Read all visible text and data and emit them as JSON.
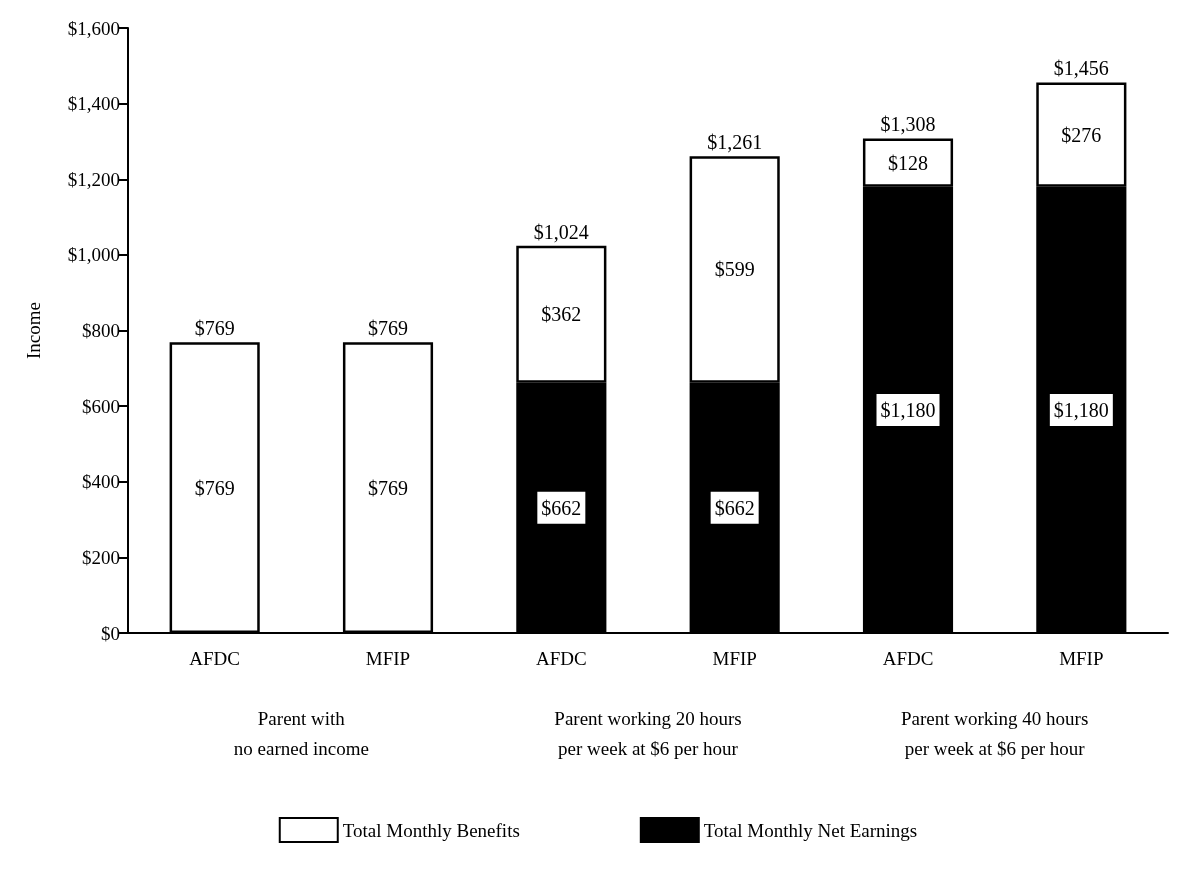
{
  "chart_data": {
    "type": "bar",
    "stacked": true,
    "ylabel": "Income",
    "categories": [
      "AFDC",
      "MFIP",
      "AFDC",
      "MFIP",
      "AFDC",
      "MFIP"
    ],
    "series": [
      {
        "name": "Total Monthly Net Earnings",
        "color": "#000000",
        "values": [
          null,
          null,
          662,
          662,
          1180,
          1180
        ],
        "value_labels": [
          null,
          null,
          "$662",
          "$662",
          "$1,180",
          "$1,180"
        ]
      },
      {
        "name": "Total Monthly Benefits",
        "color": "#ffffff",
        "values": [
          769,
          769,
          362,
          599,
          128,
          276
        ],
        "value_labels": [
          "$769",
          "$769",
          "$362",
          "$599",
          "$128",
          "$276"
        ]
      }
    ],
    "totals": [
      "$769",
      "$769",
      "$1,024",
      "$1,261",
      "$1,308",
      "$1,456"
    ],
    "annotations": [
      "Parent with\nno earned income",
      "Parent working 20 hours\nper week at $6 per hour",
      "Parent working 40 hours\nper week at $6 per hour"
    ],
    "ylim": [
      0,
      1600
    ],
    "yticks": [
      {
        "value": 0,
        "label": "$0"
      },
      {
        "value": 200,
        "label": "$200"
      },
      {
        "value": 400,
        "label": "$400"
      },
      {
        "value": 600,
        "label": "$600"
      },
      {
        "value": 800,
        "label": "$800"
      },
      {
        "value": 1000,
        "label": "$1,000"
      },
      {
        "value": 1200,
        "label": "$1,200"
      },
      {
        "value": 1400,
        "label": "$1,400"
      },
      {
        "value": 1600,
        "label": "$1,600"
      }
    ],
    "grid": false,
    "legend": "bottom"
  }
}
